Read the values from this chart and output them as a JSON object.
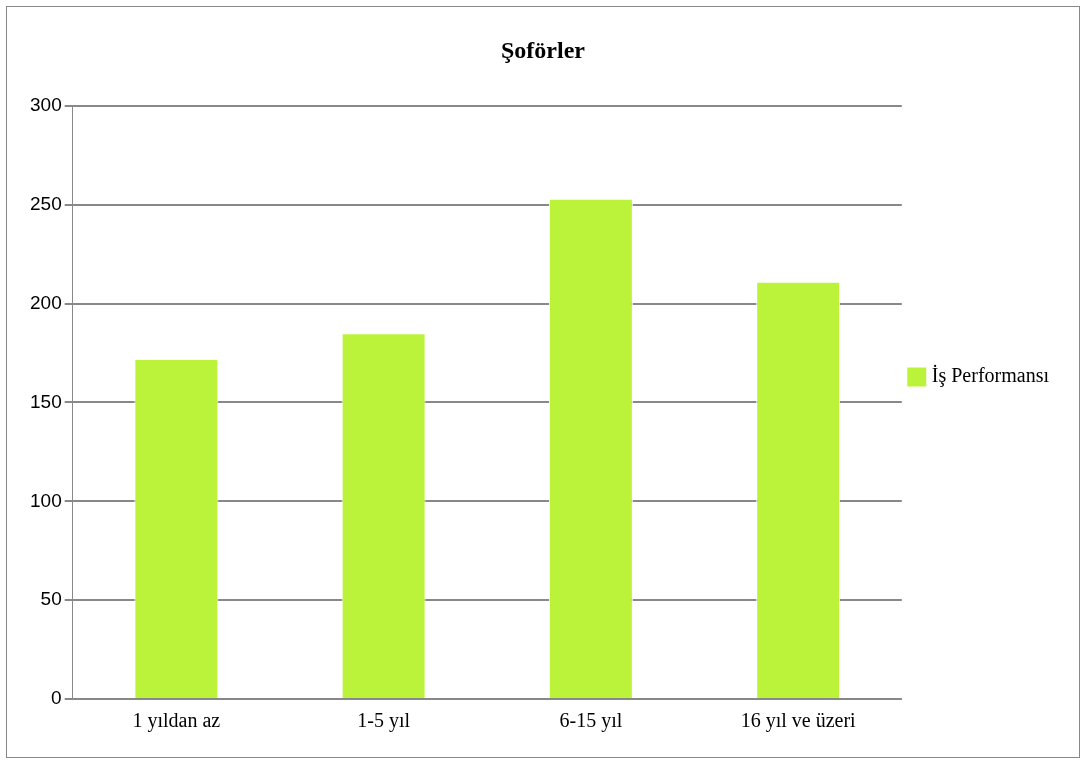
{
  "chart_data": {
    "type": "bar",
    "title": "Şoförler",
    "categories": [
      "1 yıldan az",
      "1-5 yıl",
      "6-15 yıl",
      "16 yıl ve üzeri"
    ],
    "series": [
      {
        "name": "İş Performansı",
        "color": "#bbf33a",
        "values": [
          172,
          185,
          253,
          211
        ]
      }
    ],
    "ylim": [
      0,
      300
    ],
    "yticks": [
      0,
      50,
      100,
      150,
      200,
      250,
      300
    ],
    "grid": "y",
    "legend": "right"
  }
}
